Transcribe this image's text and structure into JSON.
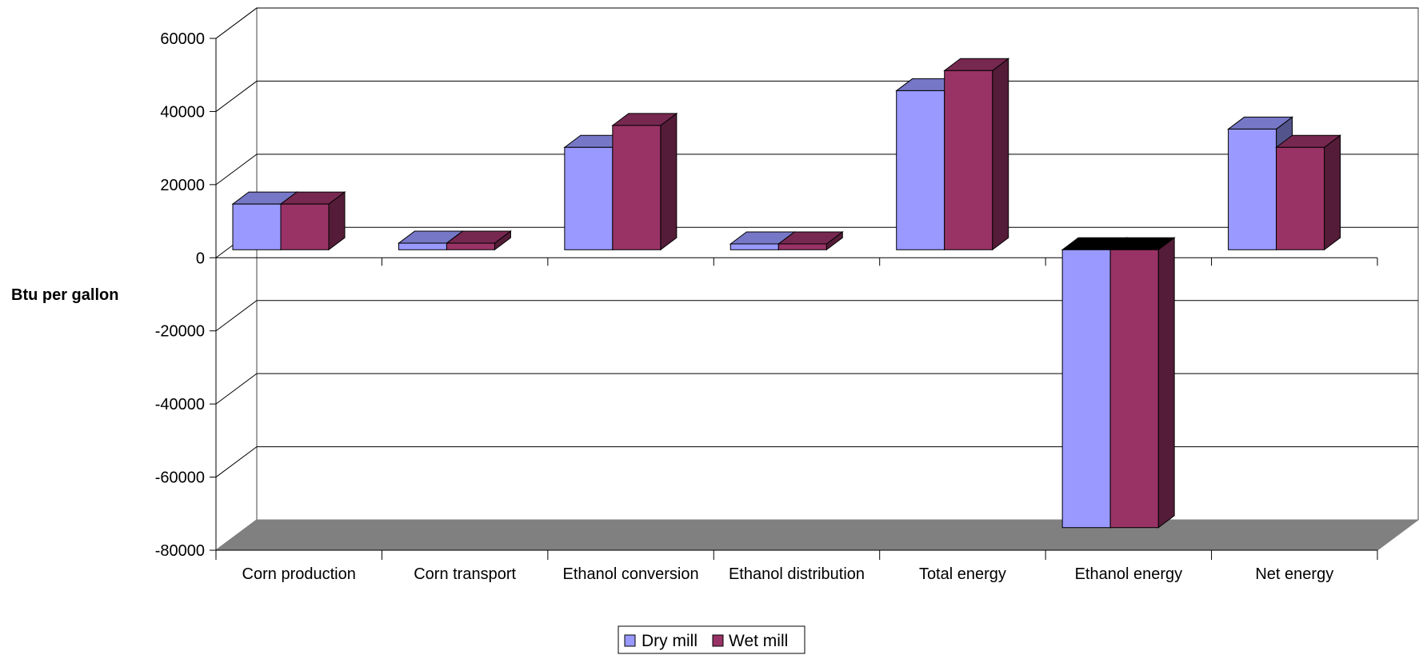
{
  "chart_data": {
    "type": "bar",
    "style": "3d-clustered-column",
    "title": "",
    "xlabel": "",
    "ylabel": "Btu per gallon",
    "ylim": [
      -80000,
      60000
    ],
    "yticks": [
      60000,
      40000,
      20000,
      0,
      -20000,
      -40000,
      -60000,
      -80000
    ],
    "grid": true,
    "legend_position": "bottom",
    "categories": [
      "Corn production",
      "Corn transport",
      "Ethanol conversion",
      "Ethanol distribution",
      "Total energy",
      "Ethanol energy",
      "Net energy"
    ],
    "series": [
      {
        "name": "Dry mill",
        "color": "#9999FF",
        "values": [
          12500,
          1800,
          28000,
          1600,
          43500,
          -76000,
          33000
        ]
      },
      {
        "name": "Wet mill",
        "color": "#993366",
        "values": [
          12500,
          1800,
          34000,
          1600,
          49000,
          -76000,
          28000
        ]
      }
    ]
  }
}
